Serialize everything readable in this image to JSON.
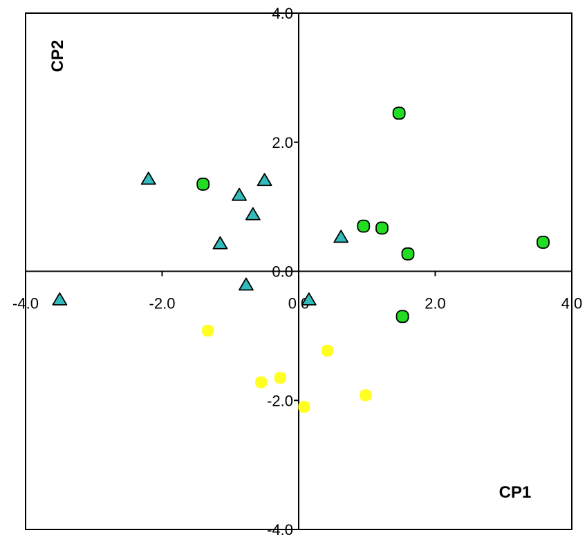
{
  "chart_data": {
    "type": "scatter",
    "xlabel": "CP1",
    "ylabel": "CP2",
    "xlim": [
      -4.0,
      4.0
    ],
    "ylim": [
      -4.0,
      4.0
    ],
    "grid": false,
    "x_ticks": [
      {
        "value": -4,
        "label": "-4.0"
      },
      {
        "value": -2,
        "label": "-2.0"
      },
      {
        "value": 0,
        "label": "0.0"
      },
      {
        "value": 2,
        "label": "2.0"
      },
      {
        "value": 4,
        "label": "4.0"
      }
    ],
    "y_ticks": [
      {
        "value": -4,
        "label": "-4.0"
      },
      {
        "value": -2,
        "label": "-2.0"
      },
      {
        "value": 0,
        "label": "0.0"
      },
      {
        "value": 2,
        "label": "2.0"
      },
      {
        "value": 4,
        "label": "4.0"
      }
    ],
    "series": [
      {
        "marker": "triangle",
        "color": "#33BBBB",
        "points": [
          {
            "x": -3.5,
            "y": -0.45
          },
          {
            "x": -2.2,
            "y": 1.42
          },
          {
            "x": -1.15,
            "y": 0.42
          },
          {
            "x": -0.87,
            "y": 1.17
          },
          {
            "x": -0.67,
            "y": 0.87
          },
          {
            "x": -0.77,
            "y": -0.22
          },
          {
            "x": -0.5,
            "y": 1.4
          },
          {
            "x": 0.15,
            "y": -0.45
          },
          {
            "x": 0.62,
            "y": 0.52
          }
        ]
      },
      {
        "marker": "circle",
        "color": "#22DD22",
        "points": [
          {
            "x": -1.4,
            "y": 1.35
          },
          {
            "x": 0.95,
            "y": 0.7
          },
          {
            "x": 1.22,
            "y": 0.67
          },
          {
            "x": 1.47,
            "y": 2.45
          },
          {
            "x": 1.6,
            "y": 0.27
          },
          {
            "x": 3.58,
            "y": 0.45
          },
          {
            "x": 1.52,
            "y": -0.7
          }
        ]
      },
      {
        "marker": "circle",
        "color": "#FFFF22",
        "points": [
          {
            "x": -1.33,
            "y": -0.92
          },
          {
            "x": -0.55,
            "y": -1.72
          },
          {
            "x": -0.27,
            "y": -1.65
          },
          {
            "x": 0.08,
            "y": -2.1
          },
          {
            "x": 0.42,
            "y": -1.23
          },
          {
            "x": 0.98,
            "y": -1.92
          }
        ]
      }
    ]
  }
}
